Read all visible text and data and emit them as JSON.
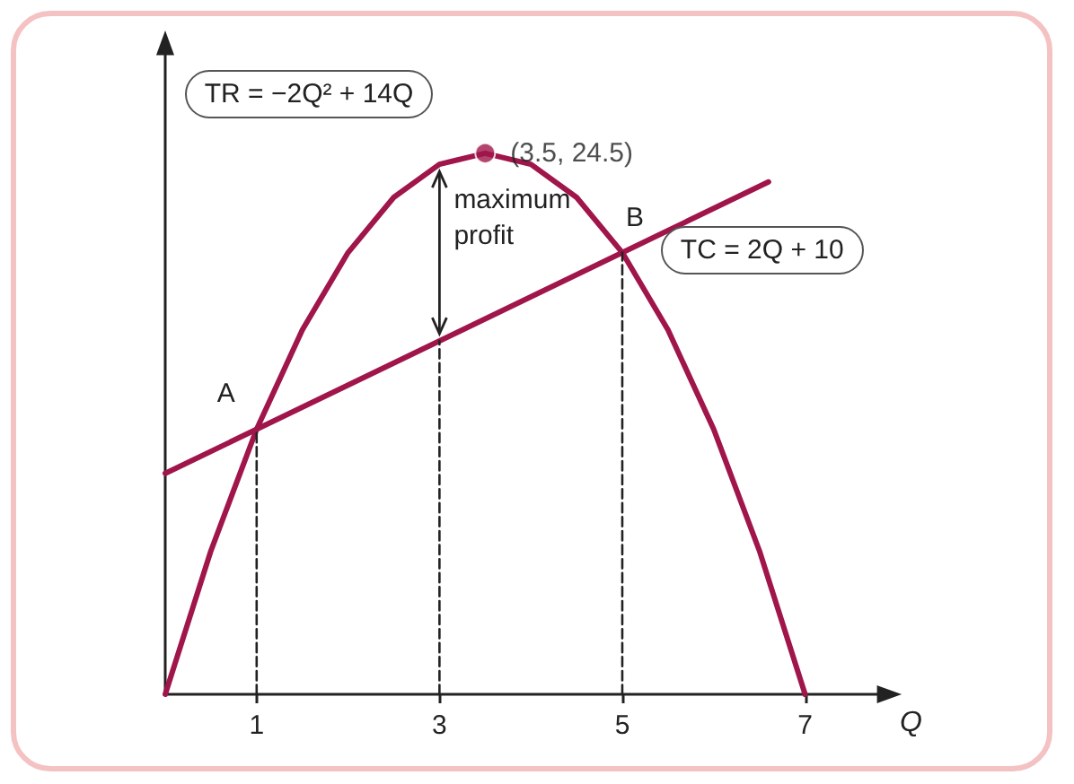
{
  "chart_data": {
    "type": "line",
    "xlabel": "Q",
    "xlim": [
      0,
      7.8
    ],
    "xticks": [
      1,
      3,
      5,
      7
    ],
    "ylim": [
      0,
      29
    ],
    "tick_labels": "x",
    "legend": false,
    "marker": "none",
    "line_style": "solid",
    "series": [
      {
        "name": "TR = −2Q² + 14Q",
        "color": "#a0154a",
        "x": [
          0,
          0.5,
          1,
          1.5,
          2,
          2.5,
          3,
          3.5,
          4,
          4.5,
          5,
          5.5,
          6,
          6.5,
          7
        ],
        "values": [
          0,
          6.5,
          12,
          16.5,
          20,
          22.5,
          24,
          24.5,
          24,
          22.5,
          20,
          16.5,
          12,
          6.5,
          0
        ]
      },
      {
        "name": "TC = 2Q + 10",
        "color": "#a0154a",
        "x": [
          0,
          6.6
        ],
        "values": [
          10,
          23.2
        ]
      },
      {
        "color": "#222222",
        "x": [
          1,
          1,
          null,
          3,
          3,
          null,
          5,
          5
        ],
        "values": [
          0,
          12,
          null,
          0,
          16,
          null,
          0,
          20
        ],
        "line_style": "dashed"
      },
      {
        "type": "scatter",
        "marker": "circle",
        "color": "#a0154a",
        "x": [
          3.5
        ],
        "values": [
          24.5
        ],
        "value_labels": [
          "(3.5, 24.5)"
        ]
      }
    ],
    "annotations": [
      {
        "text": "A",
        "x": 1,
        "y": 12
      },
      {
        "text": "B",
        "x": 5,
        "y": 20
      },
      "maximum profit"
    ]
  }
}
